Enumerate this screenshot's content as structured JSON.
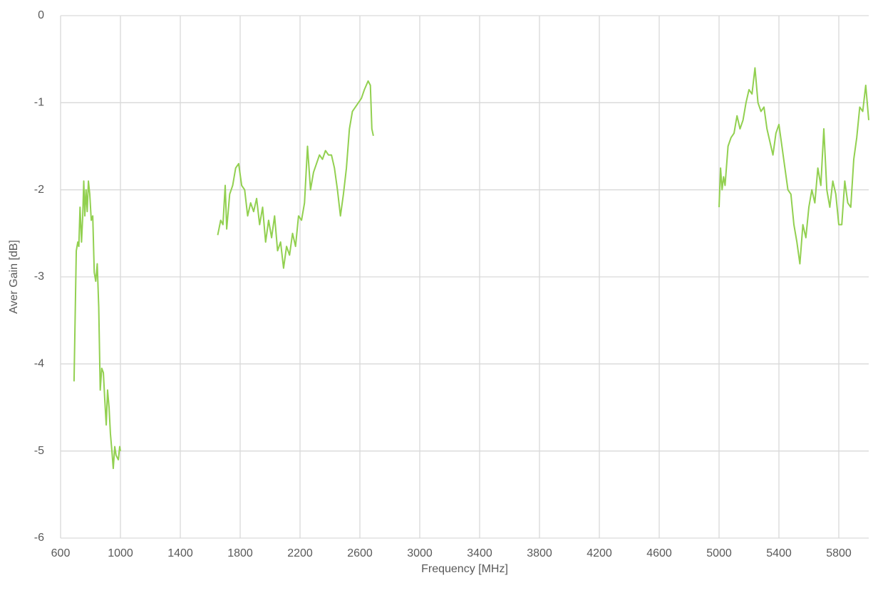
{
  "chart_data": {
    "type": "line",
    "x_label": "Frequency [MHz]",
    "y_label": "Aver Gain [dB]",
    "xlim": [
      600,
      6000
    ],
    "xticks": [
      600,
      1000,
      1400,
      1800,
      2200,
      2600,
      3000,
      3400,
      3800,
      4200,
      4600,
      5000,
      5400,
      5800
    ],
    "ylim": [
      -6,
      0
    ],
    "yticks": [
      0,
      -1,
      -2,
      -3,
      -4,
      -5,
      -6
    ],
    "grid": true,
    "x": [
      690,
      705,
      715,
      722,
      730,
      740,
      748,
      755,
      762,
      770,
      778,
      786,
      795,
      805,
      815,
      825,
      835,
      845,
      855,
      865,
      875,
      886,
      895,
      905,
      914,
      924,
      933,
      943,
      952,
      962,
      971,
      986,
      995,
      1000,
      null,
      1650,
      1670,
      1685,
      1700,
      1710,
      1730,
      1750,
      1770,
      1790,
      1810,
      1830,
      1850,
      1870,
      1890,
      1910,
      1930,
      1950,
      1970,
      1990,
      2010,
      2030,
      2050,
      2070,
      2090,
      2110,
      2130,
      2150,
      2170,
      2190,
      2210,
      2230,
      2250,
      2270,
      2290,
      2310,
      2330,
      2350,
      2370,
      2390,
      2410,
      2430,
      2450,
      2470,
      2490,
      2510,
      2530,
      2550,
      2570,
      2590,
      2610,
      2630,
      2655,
      2670,
      2680,
      2690,
      null,
      5000,
      5010,
      5020,
      5030,
      5040,
      5060,
      5080,
      5100,
      5120,
      5140,
      5160,
      5180,
      5200,
      5220,
      5240,
      5260,
      5280,
      5300,
      5320,
      5340,
      5360,
      5380,
      5400,
      5420,
      5440,
      5460,
      5480,
      5500,
      5520,
      5540,
      5560,
      5580,
      5600,
      5620,
      5640,
      5660,
      5680,
      5700,
      5720,
      5740,
      5760,
      5780,
      5800,
      5820,
      5840,
      5860,
      5880,
      5900,
      5920,
      5940,
      5960,
      5980,
      6000
    ],
    "series": [
      {
        "color": "#92d050",
        "values": [
          -4.2,
          -2.7,
          -2.6,
          -2.65,
          -2.2,
          -2.6,
          -2.3,
          -1.9,
          -2.3,
          -2.0,
          -2.25,
          -1.9,
          -2.05,
          -2.35,
          -2.3,
          -2.95,
          -3.05,
          -2.85,
          -3.35,
          -4.3,
          -4.05,
          -4.1,
          -4.4,
          -4.7,
          -4.3,
          -4.5,
          -4.8,
          -5.0,
          -5.2,
          -4.95,
          -5.05,
          -5.1,
          -4.95,
          -5.0,
          null,
          -2.52,
          -2.35,
          -2.4,
          -1.95,
          -2.45,
          -2.05,
          -1.95,
          -1.75,
          -1.7,
          -1.95,
          -2.0,
          -2.3,
          -2.15,
          -2.25,
          -2.1,
          -2.4,
          -2.2,
          -2.6,
          -2.35,
          -2.55,
          -2.3,
          -2.7,
          -2.6,
          -2.9,
          -2.65,
          -2.75,
          -2.5,
          -2.65,
          -2.3,
          -2.35,
          -2.15,
          -1.5,
          -2.0,
          -1.8,
          -1.7,
          -1.6,
          -1.65,
          -1.55,
          -1.6,
          -1.6,
          -1.75,
          -2.0,
          -2.3,
          -2.05,
          -1.75,
          -1.3,
          -1.1,
          -1.05,
          -1.0,
          -0.95,
          -0.85,
          -0.75,
          -0.8,
          -1.3,
          -1.38,
          null,
          -2.2,
          -1.75,
          -2.0,
          -1.85,
          -1.95,
          -1.5,
          -1.4,
          -1.35,
          -1.15,
          -1.3,
          -1.2,
          -1.0,
          -0.85,
          -0.9,
          -0.6,
          -1.0,
          -1.1,
          -1.05,
          -1.3,
          -1.45,
          -1.6,
          -1.35,
          -1.25,
          -1.5,
          -1.75,
          -2.0,
          -2.05,
          -2.4,
          -2.6,
          -2.85,
          -2.4,
          -2.55,
          -2.2,
          -2.0,
          -2.15,
          -1.75,
          -1.95,
          -1.3,
          -2.0,
          -2.2,
          -1.9,
          -2.05,
          -2.4,
          -2.4,
          -1.9,
          -2.15,
          -2.2,
          -1.65,
          -1.4,
          -1.05,
          -1.1,
          -0.8,
          -1.2
        ]
      }
    ]
  }
}
